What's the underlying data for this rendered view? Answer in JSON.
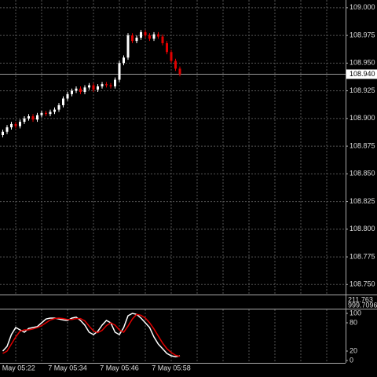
{
  "chart_data": [
    {
      "type": "candlestick",
      "categories": [
        null,
        null,
        null,
        "7 May 05:22",
        null,
        null,
        null,
        null,
        null,
        null,
        null,
        null,
        null,
        null,
        null,
        "7 May 05:34",
        null,
        null,
        null,
        null,
        null,
        null,
        null,
        null,
        null,
        null,
        null,
        "7 May 05:46",
        null,
        null,
        null,
        null,
        null,
        null,
        null,
        null,
        null,
        null,
        null,
        "7 May 05:58",
        null,
        null
      ],
      "open": [
        108.885,
        108.888,
        108.892,
        108.895,
        108.893,
        108.897,
        108.9,
        108.902,
        108.899,
        108.903,
        108.905,
        108.904,
        108.906,
        108.908,
        108.912,
        108.918,
        108.922,
        108.925,
        108.927,
        108.924,
        108.928,
        108.93,
        108.926,
        108.929,
        108.931,
        108.93,
        108.929,
        108.935,
        108.95,
        108.955,
        108.975,
        108.97,
        108.973,
        108.978,
        108.975,
        108.972,
        108.976,
        108.974,
        108.968,
        108.96,
        108.952,
        108.945
      ],
      "high": [
        108.89,
        108.894,
        108.897,
        108.897,
        108.899,
        108.902,
        108.904,
        108.904,
        108.905,
        108.907,
        108.907,
        108.908,
        108.91,
        108.914,
        108.92,
        108.924,
        108.927,
        108.929,
        108.929,
        108.93,
        108.932,
        108.932,
        108.931,
        108.933,
        108.933,
        108.932,
        108.937,
        108.952,
        108.957,
        108.977,
        108.977,
        108.975,
        108.98,
        108.98,
        108.977,
        108.978,
        108.978,
        108.976,
        108.97,
        108.962,
        108.954,
        108.947
      ],
      "low": [
        108.883,
        108.886,
        108.89,
        108.891,
        108.891,
        108.895,
        108.898,
        108.897,
        108.897,
        108.901,
        108.902,
        108.902,
        108.904,
        108.906,
        108.91,
        108.916,
        108.92,
        108.923,
        108.922,
        108.922,
        108.926,
        108.924,
        108.924,
        108.927,
        108.928,
        108.927,
        108.927,
        108.933,
        108.948,
        108.953,
        108.968,
        108.968,
        108.971,
        108.973,
        108.97,
        108.97,
        108.972,
        108.966,
        108.958,
        108.95,
        108.943,
        108.938
      ],
      "close": [
        108.888,
        108.892,
        108.895,
        108.893,
        108.897,
        108.9,
        108.902,
        108.899,
        108.903,
        108.905,
        108.904,
        108.906,
        108.908,
        108.912,
        108.918,
        108.922,
        108.925,
        108.927,
        108.924,
        108.928,
        108.93,
        108.926,
        108.929,
        108.931,
        108.93,
        108.929,
        108.935,
        108.95,
        108.955,
        108.975,
        108.97,
        108.973,
        108.978,
        108.975,
        108.972,
        108.976,
        108.974,
        108.968,
        108.96,
        108.952,
        108.945,
        108.94
      ],
      "up_color": "#ffffff",
      "down_color": "#e00000",
      "ylim": [
        108.741,
        109.007
      ],
      "yticks": [
        {
          "value": 109,
          "label": "109.000"
        },
        108.975,
        {
          "value": 108.95,
          "label": "108.950"
        },
        108.925,
        {
          "value": 108.9,
          "label": "108.900"
        },
        108.875,
        {
          "value": 108.85,
          "label": "108.850"
        },
        108.825,
        {
          "value": 108.8,
          "label": "108.800"
        },
        108.775,
        {
          "value": 108.75,
          "label": "108.750"
        }
      ],
      "last_price": {
        "value": 108.94,
        "label": "108.940"
      },
      "grid": true
    },
    {
      "type": "line",
      "ylim": [
        -5,
        105
      ],
      "yticks": [
        100,
        80,
        20,
        0
      ],
      "series": [
        {
          "color": "#ffffff",
          "values": [
            20,
            30,
            55,
            70,
            65,
            60,
            68,
            70,
            72,
            80,
            88,
            90,
            90,
            88,
            86,
            85,
            90,
            92,
            85,
            75,
            60,
            55,
            62,
            75,
            85,
            80,
            60,
            55,
            70,
            95,
            100,
            98,
            90,
            80,
            70,
            50,
            35,
            25,
            15,
            10,
            8,
            10
          ]
        },
        {
          "color": "#e00000",
          "values": [
            15,
            20,
            35,
            50,
            62,
            65,
            65,
            67,
            70,
            74,
            80,
            86,
            89,
            90,
            89,
            87,
            87,
            89,
            89,
            84,
            73,
            63,
            59,
            64,
            74,
            80,
            75,
            65,
            60,
            73,
            88,
            98,
            96,
            90,
            80,
            67,
            52,
            37,
            25,
            17,
            11,
            9
          ]
        }
      ]
    }
  ],
  "indicator_panel": {
    "labels": [
      "211.763",
      "999.7096"
    ]
  }
}
